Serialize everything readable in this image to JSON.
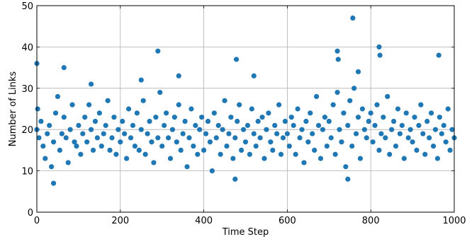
{
  "chart_data": {
    "type": "scatter",
    "xlabel": "Time Step",
    "ylabel": "Number of Links",
    "xlim": [
      0,
      1000
    ],
    "ylim": [
      0,
      50
    ],
    "xticks": [
      0,
      200,
      400,
      600,
      800,
      1000
    ],
    "yticks": [
      0,
      10,
      20,
      30,
      40,
      50
    ],
    "grid": true,
    "color": "#1f77b4",
    "x": [
      0,
      5,
      10,
      15,
      20,
      25,
      30,
      35,
      40,
      45,
      50,
      55,
      60,
      65,
      70,
      75,
      80,
      85,
      90,
      95,
      100,
      105,
      110,
      115,
      120,
      125,
      130,
      135,
      140,
      145,
      150,
      155,
      160,
      165,
      170,
      175,
      180,
      185,
      190,
      195,
      200,
      205,
      210,
      215,
      220,
      225,
      230,
      235,
      240,
      245,
      250,
      255,
      260,
      265,
      270,
      275,
      280,
      285,
      290,
      295,
      300,
      305,
      310,
      315,
      320,
      325,
      330,
      335,
      340,
      345,
      350,
      355,
      360,
      365,
      370,
      375,
      380,
      385,
      390,
      395,
      400,
      405,
      410,
      415,
      420,
      425,
      430,
      435,
      440,
      445,
      450,
      455,
      460,
      465,
      470,
      475,
      480,
      485,
      490,
      495,
      500,
      505,
      510,
      515,
      520,
      525,
      530,
      535,
      540,
      545,
      550,
      555,
      560,
      565,
      570,
      575,
      580,
      585,
      590,
      595,
      600,
      605,
      610,
      615,
      620,
      625,
      630,
      635,
      640,
      645,
      650,
      655,
      660,
      665,
      670,
      675,
      680,
      685,
      690,
      695,
      700,
      705,
      710,
      715,
      720,
      725,
      730,
      735,
      740,
      745,
      750,
      755,
      760,
      765,
      770,
      775,
      780,
      785,
      790,
      795,
      800,
      805,
      810,
      815,
      820,
      825,
      830,
      835,
      840,
      845,
      850,
      855,
      860,
      865,
      870,
      875,
      880,
      885,
      890,
      895,
      900,
      905,
      910,
      915,
      920,
      925,
      930,
      935,
      940,
      945,
      950,
      955,
      960,
      965,
      970,
      975,
      980,
      985,
      990,
      995,
      1000,
      0,
      2,
      40,
      65,
      130,
      250,
      290,
      340,
      475,
      478,
      520,
      720,
      722,
      745,
      757,
      770,
      820,
      822,
      963
    ],
    "values": [
      20,
      18,
      22,
      16,
      13,
      19,
      21,
      11,
      17,
      24,
      28,
      15,
      19,
      23,
      18,
      12,
      20,
      26,
      17,
      16,
      21,
      14,
      19,
      23,
      17,
      26,
      20,
      15,
      22,
      18,
      24,
      16,
      19,
      21,
      27,
      15,
      18,
      23,
      14,
      20,
      17,
      22,
      19,
      13,
      25,
      18,
      21,
      16,
      24,
      15,
      20,
      27,
      14,
      19,
      22,
      17,
      12,
      23,
      18,
      29,
      16,
      21,
      24,
      18,
      13,
      20,
      23,
      17,
      26,
      15,
      19,
      22,
      11,
      18,
      25,
      16,
      21,
      14,
      20,
      23,
      15,
      19,
      22,
      17,
      10,
      24,
      18,
      21,
      14,
      20,
      27,
      16,
      19,
      23,
      13,
      18,
      22,
      26,
      15,
      20,
      17,
      21,
      14,
      25,
      19,
      16,
      22,
      18,
      23,
      13,
      20,
      24,
      17,
      15,
      21,
      19,
      26,
      14,
      18,
      22,
      19,
      16,
      23,
      21,
      14,
      25,
      18,
      20,
      12,
      22,
      17,
      24,
      19,
      15,
      28,
      21,
      13,
      20,
      23,
      16,
      22,
      18,
      26,
      14,
      29,
      20,
      17,
      24,
      11,
      21,
      27,
      16,
      30,
      19,
      23,
      13,
      25,
      20,
      18,
      22,
      24,
      17,
      21,
      26,
      15,
      19,
      23,
      18,
      28,
      14,
      20,
      22,
      16,
      25,
      19,
      21,
      13,
      24,
      18,
      20,
      17,
      23,
      15,
      21,
      26,
      19,
      14,
      22,
      18,
      24,
      16,
      20,
      13,
      23,
      19,
      21,
      17,
      25,
      15,
      20,
      18,
      36,
      25,
      7,
      35,
      31,
      32,
      39,
      33,
      8,
      37,
      33,
      39,
      37,
      8,
      47,
      34,
      40,
      38,
      38
    ]
  }
}
